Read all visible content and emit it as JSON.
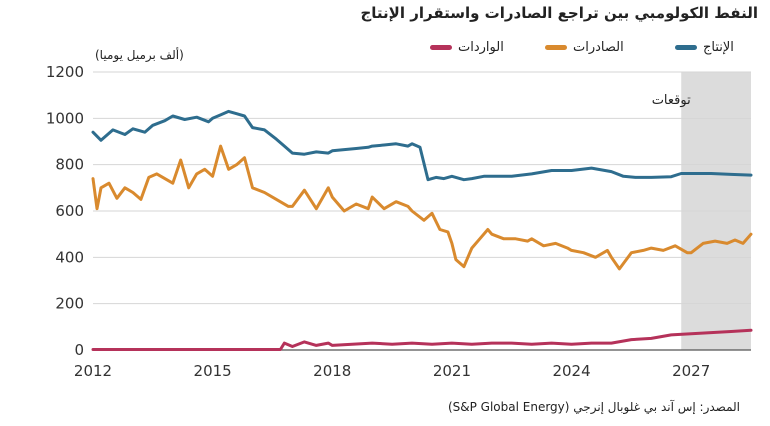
{
  "chart_data": {
    "type": "line",
    "title": "النفط الكولومبي بين تراجع الصادرات واستقرار الإنتاج",
    "ylabel": "(ألف برميل يوميا)",
    "ylim": [
      0,
      1200
    ],
    "yticks": [
      "0",
      "200",
      "400",
      "600",
      "800",
      "1000",
      "1200"
    ],
    "xlim": [
      2012,
      2028.5
    ],
    "xticks": [
      "2012",
      "2015",
      "2018",
      "2021",
      "2024",
      "2027"
    ],
    "grid": true,
    "legend_position": "top",
    "forecast": {
      "label": "توقعات",
      "start": 2026.75,
      "end": 2028.5
    },
    "series": [
      {
        "name": "الإنتاج",
        "color": "#2e6d8e",
        "points": [
          [
            2012,
            940
          ],
          [
            2012.2,
            905
          ],
          [
            2012.5,
            950
          ],
          [
            2012.8,
            930
          ],
          [
            2013,
            955
          ],
          [
            2013.3,
            940
          ],
          [
            2013.5,
            970
          ],
          [
            2013.8,
            990
          ],
          [
            2014,
            1010
          ],
          [
            2014.3,
            995
          ],
          [
            2014.6,
            1005
          ],
          [
            2014.9,
            985
          ],
          [
            2015,
            1000
          ],
          [
            2015.2,
            1015
          ],
          [
            2015.4,
            1030
          ],
          [
            2015.6,
            1020
          ],
          [
            2015.8,
            1010
          ],
          [
            2016,
            960
          ],
          [
            2016.3,
            950
          ],
          [
            2016.6,
            910
          ],
          [
            2016.8,
            880
          ],
          [
            2017,
            850
          ],
          [
            2017.3,
            845
          ],
          [
            2017.6,
            855
          ],
          [
            2017.9,
            850
          ],
          [
            2018,
            860
          ],
          [
            2018.3,
            865
          ],
          [
            2018.6,
            870
          ],
          [
            2018.9,
            875
          ],
          [
            2019,
            880
          ],
          [
            2019.3,
            885
          ],
          [
            2019.6,
            890
          ],
          [
            2019.9,
            880
          ],
          [
            2020,
            890
          ],
          [
            2020.2,
            875
          ],
          [
            2020.4,
            735
          ],
          [
            2020.6,
            745
          ],
          [
            2020.8,
            740
          ],
          [
            2021,
            750
          ],
          [
            2021.2,
            740
          ],
          [
            2021.3,
            735
          ],
          [
            2021.5,
            740
          ],
          [
            2021.8,
            750
          ],
          [
            2022,
            750
          ],
          [
            2022.5,
            750
          ],
          [
            2023,
            760
          ],
          [
            2023.5,
            775
          ],
          [
            2024,
            775
          ],
          [
            2024.5,
            785
          ],
          [
            2025,
            770
          ],
          [
            2025.3,
            750
          ],
          [
            2025.6,
            745
          ],
          [
            2026,
            745
          ],
          [
            2026.5,
            748
          ],
          [
            2026.75,
            762
          ],
          [
            2027,
            762
          ],
          [
            2027.5,
            762
          ],
          [
            2028,
            758
          ],
          [
            2028.5,
            755
          ]
        ]
      },
      {
        "name": "الصادرات",
        "color": "#d98a2e",
        "points": [
          [
            2012,
            740
          ],
          [
            2012.1,
            610
          ],
          [
            2012.2,
            700
          ],
          [
            2012.4,
            720
          ],
          [
            2012.6,
            655
          ],
          [
            2012.8,
            700
          ],
          [
            2013,
            680
          ],
          [
            2013.2,
            650
          ],
          [
            2013.4,
            745
          ],
          [
            2013.6,
            760
          ],
          [
            2013.8,
            740
          ],
          [
            2014,
            720
          ],
          [
            2014.2,
            820
          ],
          [
            2014.4,
            700
          ],
          [
            2014.6,
            760
          ],
          [
            2014.8,
            780
          ],
          [
            2015,
            750
          ],
          [
            2015.2,
            880
          ],
          [
            2015.4,
            780
          ],
          [
            2015.6,
            800
          ],
          [
            2015.8,
            830
          ],
          [
            2016,
            700
          ],
          [
            2016.3,
            680
          ],
          [
            2016.6,
            650
          ],
          [
            2016.9,
            620
          ],
          [
            2017,
            620
          ],
          [
            2017.3,
            690
          ],
          [
            2017.6,
            610
          ],
          [
            2017.9,
            700
          ],
          [
            2018,
            660
          ],
          [
            2018.3,
            600
          ],
          [
            2018.6,
            630
          ],
          [
            2018.9,
            610
          ],
          [
            2019,
            660
          ],
          [
            2019.3,
            610
          ],
          [
            2019.6,
            640
          ],
          [
            2019.9,
            620
          ],
          [
            2020,
            600
          ],
          [
            2020.3,
            560
          ],
          [
            2020.5,
            590
          ],
          [
            2020.7,
            520
          ],
          [
            2020.9,
            510
          ],
          [
            2021,
            460
          ],
          [
            2021.1,
            390
          ],
          [
            2021.3,
            360
          ],
          [
            2021.5,
            440
          ],
          [
            2021.7,
            480
          ],
          [
            2021.9,
            520
          ],
          [
            2022,
            500
          ],
          [
            2022.3,
            480
          ],
          [
            2022.6,
            480
          ],
          [
            2022.9,
            470
          ],
          [
            2023,
            480
          ],
          [
            2023.3,
            450
          ],
          [
            2023.6,
            460
          ],
          [
            2023.9,
            440
          ],
          [
            2024,
            430
          ],
          [
            2024.3,
            420
          ],
          [
            2024.6,
            400
          ],
          [
            2024.9,
            430
          ],
          [
            2025,
            400
          ],
          [
            2025.2,
            350
          ],
          [
            2025.5,
            420
          ],
          [
            2025.8,
            430
          ],
          [
            2026,
            440
          ],
          [
            2026.3,
            430
          ],
          [
            2026.6,
            450
          ],
          [
            2026.9,
            420
          ],
          [
            2027,
            420
          ],
          [
            2027.3,
            460
          ],
          [
            2027.6,
            470
          ],
          [
            2027.9,
            460
          ],
          [
            2028.1,
            475
          ],
          [
            2028.3,
            460
          ],
          [
            2028.5,
            500
          ]
        ]
      },
      {
        "name": "الواردات",
        "color": "#b5325a",
        "points": [
          [
            2012,
            2
          ],
          [
            2013,
            2
          ],
          [
            2014,
            2
          ],
          [
            2015,
            2
          ],
          [
            2016,
            2
          ],
          [
            2016.7,
            2
          ],
          [
            2016.8,
            30
          ],
          [
            2017,
            15
          ],
          [
            2017.3,
            35
          ],
          [
            2017.6,
            20
          ],
          [
            2017.9,
            30
          ],
          [
            2018,
            20
          ],
          [
            2018.5,
            25
          ],
          [
            2019,
            30
          ],
          [
            2019.5,
            25
          ],
          [
            2020,
            30
          ],
          [
            2020.5,
            25
          ],
          [
            2021,
            30
          ],
          [
            2021.5,
            25
          ],
          [
            2022,
            30
          ],
          [
            2022.5,
            30
          ],
          [
            2023,
            25
          ],
          [
            2023.5,
            30
          ],
          [
            2024,
            25
          ],
          [
            2024.5,
            30
          ],
          [
            2025,
            30
          ],
          [
            2025.5,
            45
          ],
          [
            2026,
            50
          ],
          [
            2026.5,
            65
          ],
          [
            2027,
            70
          ],
          [
            2027.5,
            75
          ],
          [
            2028,
            80
          ],
          [
            2028.5,
            85
          ]
        ]
      }
    ],
    "source": "المصدر: إس آند بي غلوبال إنرجي (S&P Global Energy)"
  }
}
